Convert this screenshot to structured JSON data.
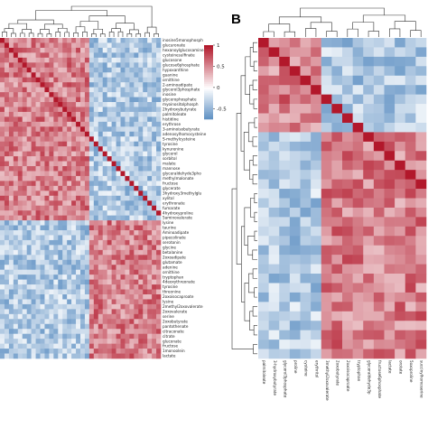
{
  "panels": [
    {
      "id": "A",
      "label": ""
    },
    {
      "id": "B",
      "label": "B"
    }
  ],
  "colors": {
    "high": "#b2182b",
    "mid": "#ffffff",
    "low": "#2166ac"
  },
  "chart_data": [
    {
      "type": "heatmap",
      "panel": "A",
      "title": "",
      "value_range": [
        -0.75,
        1
      ],
      "colorbar_ticks": [
        1,
        0.5,
        0,
        -0.5
      ],
      "colorbar_tick_labels": [
        "1",
        "0.5",
        "0",
        "-0.5"
      ],
      "row_labels": [
        "inosine5monophosph",
        "glucuronate",
        "hexanoylglucosamine",
        "cysteinesulfinate",
        "glucosone",
        "glucose6phosphate",
        "hypoxanthine",
        "guanine",
        "ornithine",
        "2-aminoadipate",
        "glycerol3phosphate",
        "inosine",
        "glycerophosphate",
        "myoinositolphosph",
        "2hydroxybutyrate",
        "palmitoleate",
        "histidine",
        "erythrose",
        "3-aminoisobutyrate",
        "adenosylhomocysteine",
        "S-methylcysteine",
        "tyrosine",
        "kynurenine",
        "glycerol",
        "sorbitol",
        "malate",
        "mannose",
        "glyceraldehyde3pho",
        "methylmalonate",
        "fructose",
        "glycerate",
        "3hydroxy3methylglu",
        "xylitol",
        "erythronate",
        "fumarate",
        "4hydroxyproline",
        "5aminovalerate",
        "lysine",
        "taurine",
        "Aminoadipate",
        "pipecolinate",
        "serotonin",
        "glycine",
        "betalanine",
        "2oxoadipate",
        "glutamate",
        "adenine",
        "ornithine",
        "tryptophan",
        "4deoxythreonate",
        "tyrosine",
        "threonine",
        "2oxoisocaproate",
        "lysine",
        "2methyl2oxovalerate",
        "2oxovalerate",
        "serine",
        "2oxobutyrate",
        "pantothenate",
        "citraconate",
        "citrate",
        "gluconate",
        "fructose",
        "1monoolein",
        "lactate"
      ],
      "col_labels": [
        "",
        "",
        "",
        "",
        "",
        "",
        "",
        "",
        "",
        "",
        "",
        "",
        "",
        "",
        "",
        "",
        "",
        "",
        "",
        "",
        "",
        "",
        "",
        "",
        "",
        "",
        "",
        "",
        "",
        "",
        "",
        "",
        "",
        "",
        "",
        ""
      ],
      "cluster_sizes": [
        37,
        28
      ],
      "note": "Values are a correlation matrix reproduced approximately; two main blocks of positively correlated metabolites."
    },
    {
      "type": "heatmap",
      "panel": "B",
      "title": "",
      "value_range": [
        -0.75,
        1
      ],
      "row_labels": [],
      "col_labels": [
        "palmitoleate",
        "3-hydroxybutyrate",
        "glycerol3phosphate",
        "proline",
        "cysteine",
        "erythritol",
        "3methyl2oxovalerate",
        "2oxobutyrate",
        "2oxoisocaproate",
        "tryptophan",
        "glyceraldehyde3p",
        "fructose6phosphate",
        "lactate",
        "orotate",
        "5oxoproline",
        "succinylhomoserine"
      ],
      "cluster_sizes": [
        6,
        10
      ],
      "note": "Correlation matrix reproduced approximately."
    }
  ]
}
